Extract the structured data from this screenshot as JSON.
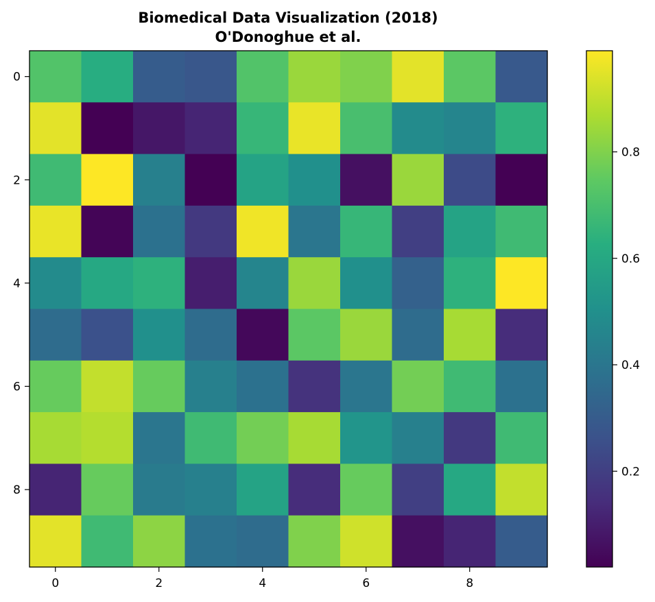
{
  "chart_data": {
    "type": "heatmap",
    "title": "Biomedical Data Visualization (2018)",
    "subtitle": "O'Donoghue et al.",
    "colormap": "viridis",
    "xlim": [
      -0.5,
      9.5
    ],
    "ylim": [
      9.5,
      -0.5
    ],
    "x_ticks": [
      0,
      2,
      4,
      6,
      8
    ],
    "y_ticks": [
      0,
      2,
      4,
      6,
      8
    ],
    "colorbar_range": [
      0.02,
      0.99
    ],
    "colorbar_ticks": [
      0.2,
      0.4,
      0.6,
      0.8
    ],
    "grid": false,
    "values": [
      [
        0.72,
        0.62,
        0.3,
        0.28,
        0.72,
        0.84,
        0.8,
        0.95,
        0.74,
        0.29
      ],
      [
        0.95,
        0.02,
        0.08,
        0.12,
        0.66,
        0.96,
        0.7,
        0.48,
        0.46,
        0.64
      ],
      [
        0.68,
        0.99,
        0.44,
        0.02,
        0.58,
        0.5,
        0.06,
        0.84,
        0.24,
        0.02
      ],
      [
        0.96,
        0.03,
        0.38,
        0.18,
        0.97,
        0.4,
        0.66,
        0.2,
        0.58,
        0.68
      ],
      [
        0.48,
        0.6,
        0.64,
        0.1,
        0.46,
        0.84,
        0.5,
        0.32,
        0.64,
        0.99
      ],
      [
        0.36,
        0.26,
        0.5,
        0.36,
        0.04,
        0.74,
        0.84,
        0.36,
        0.86,
        0.14
      ],
      [
        0.76,
        0.9,
        0.76,
        0.44,
        0.38,
        0.16,
        0.4,
        0.78,
        0.68,
        0.38
      ],
      [
        0.86,
        0.88,
        0.4,
        0.68,
        0.78,
        0.86,
        0.52,
        0.44,
        0.18,
        0.68
      ],
      [
        0.12,
        0.76,
        0.42,
        0.44,
        0.58,
        0.14,
        0.76,
        0.2,
        0.6,
        0.9
      ],
      [
        0.95,
        0.68,
        0.82,
        0.38,
        0.36,
        0.8,
        0.92,
        0.06,
        0.12,
        0.3
      ]
    ]
  }
}
